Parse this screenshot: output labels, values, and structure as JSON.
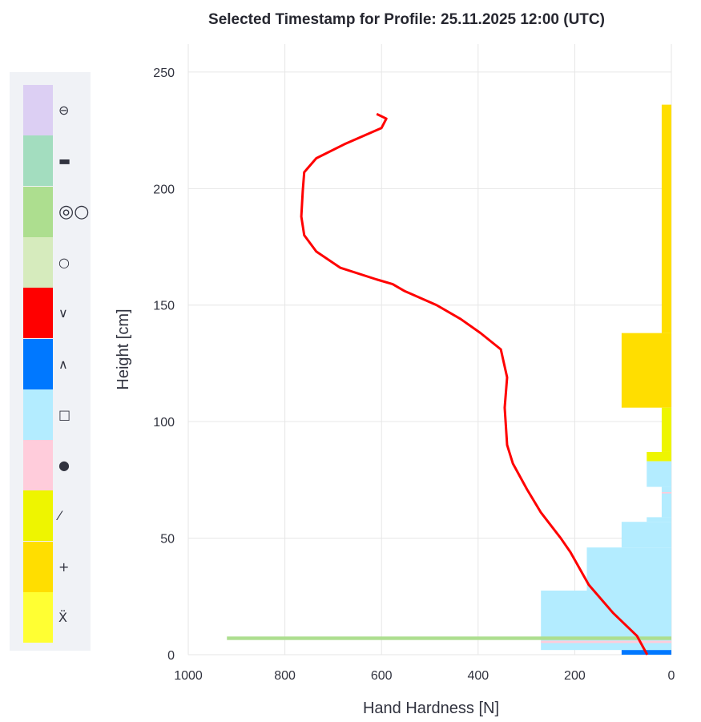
{
  "chart_data": {
    "type": "line",
    "title": "Selected Timestamp for Profile: 25.11.2025 12:00 (UTC)",
    "xlabel": "Hand Hardness [N]",
    "ylabel": "Height [cm]",
    "xlim": [
      1000,
      0
    ],
    "ylim": [
      0,
      262
    ],
    "x_reversed": true,
    "xticks": [
      1000,
      800,
      600,
      400,
      200,
      0
    ],
    "yticks": [
      0,
      50,
      100,
      150,
      200,
      250
    ],
    "grid": true,
    "line_color": "#FF0000",
    "ram_profile": [
      [
        610,
        232
      ],
      [
        590,
        230
      ],
      [
        600,
        226
      ],
      [
        677,
        219
      ],
      [
        735,
        213
      ],
      [
        760,
        207
      ],
      [
        763,
        199
      ],
      [
        766,
        188
      ],
      [
        760,
        180
      ],
      [
        735,
        173
      ],
      [
        685,
        166
      ],
      [
        610,
        161
      ],
      [
        577,
        159
      ],
      [
        552,
        156
      ],
      [
        486,
        150
      ],
      [
        436,
        144
      ],
      [
        395,
        138
      ],
      [
        353,
        131
      ],
      [
        340,
        119
      ],
      [
        345,
        106
      ],
      [
        340,
        90
      ],
      [
        328,
        82
      ],
      [
        299,
        71
      ],
      [
        270,
        61
      ],
      [
        229,
        50
      ],
      [
        209,
        44
      ],
      [
        171,
        30
      ],
      [
        121,
        18
      ],
      [
        71,
        8
      ],
      [
        50,
        0
      ]
    ],
    "layers": [
      {
        "bottom": 138,
        "top": 236,
        "hardness": 20,
        "color": "#FFDE00"
      },
      {
        "bottom": 106,
        "top": 138,
        "hardness": 103,
        "color": "#FFDE00"
      },
      {
        "bottom": 87,
        "top": 106,
        "hardness": 20,
        "color": "#EEF500"
      },
      {
        "bottom": 83,
        "top": 87,
        "hardness": 51,
        "color": "#EEF500"
      },
      {
        "bottom": 72,
        "top": 83,
        "hardness": 51,
        "color": "#B3ECFF"
      },
      {
        "bottom": 59,
        "top": 72,
        "hardness": 20,
        "color": "#B3ECFF"
      },
      {
        "bottom": 69.2,
        "top": 69.8,
        "hardness": 20,
        "color": "#FFCCDB"
      },
      {
        "bottom": 57,
        "top": 59,
        "hardness": 51,
        "color": "#B3ECFF"
      },
      {
        "bottom": 46,
        "top": 57,
        "hardness": 103,
        "color": "#B3ECFF"
      },
      {
        "bottom": 27.5,
        "top": 46,
        "hardness": 175,
        "color": "#B3ECFF"
      },
      {
        "bottom": 2,
        "top": 27.5,
        "hardness": 270,
        "color": "#B3ECFF"
      },
      {
        "bottom": 5,
        "top": 6,
        "hardness": 270,
        "color": "#FFCCDB"
      },
      {
        "bottom": 6.3,
        "top": 7.8,
        "hardness": 920,
        "color": "#ADDE8F"
      },
      {
        "bottom": 0,
        "top": 2,
        "hardness": 103,
        "color": "#0078FF"
      }
    ],
    "legend": [
      {
        "color": "#DCCFF3",
        "symbol": "⊖"
      },
      {
        "color": "#A3DDBF",
        "symbol": "▬"
      },
      {
        "color": "#ADDE8F",
        "symbol": "◎○"
      },
      {
        "color": "#D6EBBD",
        "symbol": "○"
      },
      {
        "color": "#FF0000",
        "symbol": "∨"
      },
      {
        "color": "#0078FF",
        "symbol": "∧"
      },
      {
        "color": "#B3ECFF",
        "symbol": "□"
      },
      {
        "color": "#FFCCDB",
        "symbol": "●"
      },
      {
        "color": "#EEF500",
        "symbol": "⁄"
      },
      {
        "color": "#FFDE00",
        "symbol": "+"
      },
      {
        "color": "#FFFF33",
        "symbol": "Ẍ"
      }
    ]
  }
}
